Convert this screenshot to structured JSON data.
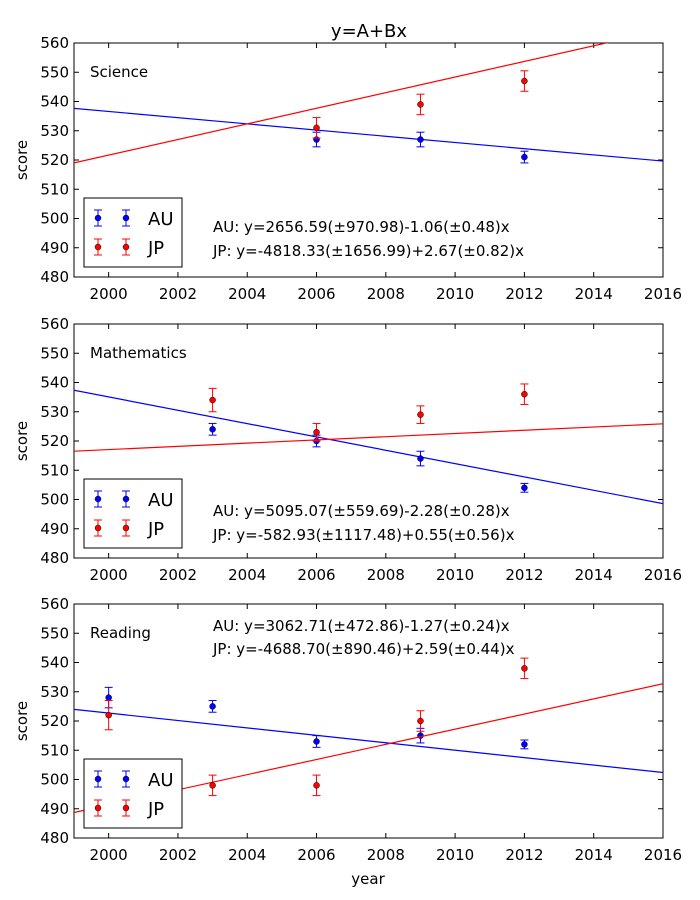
{
  "figure": {
    "title": "y=A+Bx",
    "xlabel": "year"
  },
  "legend_labels": {
    "au": "AU",
    "jp": "JP"
  },
  "colors": {
    "au": "#0000ff",
    "jp": "#ff0000",
    "axis": "#000000",
    "background": "#ffffff"
  },
  "chart_data": [
    {
      "type": "scatter",
      "title": "Science",
      "xlabel": "",
      "ylabel": "score",
      "xlim": [
        1999,
        2016
      ],
      "ylim": [
        480,
        560
      ],
      "xticks": [
        "2000",
        "2002",
        "2004",
        "2006",
        "2008",
        "2010",
        "2012",
        "2014",
        "2016"
      ],
      "yticks": [
        "480",
        "490",
        "500",
        "510",
        "520",
        "530",
        "540",
        "550",
        "560"
      ],
      "grid": false,
      "legend_position": "lower-left",
      "series": [
        {
          "name": "AU",
          "x": [
            2006,
            2009,
            2012
          ],
          "y": [
            527,
            527,
            521
          ],
          "err": [
            2.5,
            2.5,
            2
          ],
          "fit": {
            "a": 2656.59,
            "b": -1.06
          }
        },
        {
          "name": "JP",
          "x": [
            2006,
            2009,
            2012
          ],
          "y": [
            531,
            539,
            547
          ],
          "err": [
            3.5,
            3.5,
            3.5
          ],
          "fit": {
            "a": -4818.33,
            "b": 2.67
          }
        }
      ],
      "annotations": [
        "AU: y=2656.59(±970.98)-1.06(±0.48)x",
        "JP: y=-4818.33(±1656.99)+2.67(±0.82)x"
      ]
    },
    {
      "type": "scatter",
      "title": "Mathematics",
      "xlabel": "",
      "ylabel": "score",
      "xlim": [
        1999,
        2016
      ],
      "ylim": [
        480,
        560
      ],
      "xticks": [
        "2000",
        "2002",
        "2004",
        "2006",
        "2008",
        "2010",
        "2012",
        "2014",
        "2016"
      ],
      "yticks": [
        "480",
        "490",
        "500",
        "510",
        "520",
        "530",
        "540",
        "550",
        "560"
      ],
      "grid": false,
      "legend_position": "lower-left",
      "series": [
        {
          "name": "AU",
          "x": [
            2003,
            2006,
            2009,
            2012
          ],
          "y": [
            524,
            520,
            514,
            504
          ],
          "err": [
            2,
            2,
            2.5,
            1.5
          ],
          "fit": {
            "a": 5095.07,
            "b": -2.28
          }
        },
        {
          "name": "JP",
          "x": [
            2003,
            2006,
            2009,
            2012
          ],
          "y": [
            534,
            523,
            529,
            536
          ],
          "err": [
            4,
            3,
            3,
            3.5
          ],
          "fit": {
            "a": -582.93,
            "b": 0.55
          }
        }
      ],
      "annotations": [
        "AU: y=5095.07(±559.69)-2.28(±0.28)x",
        "JP: y=-582.93(±1117.48)+0.55(±0.56)x"
      ]
    },
    {
      "type": "scatter",
      "title": "Reading",
      "xlabel": "year",
      "ylabel": "score",
      "xlim": [
        1999,
        2016
      ],
      "ylim": [
        480,
        560
      ],
      "xticks": [
        "2000",
        "2002",
        "2004",
        "2006",
        "2008",
        "2010",
        "2012",
        "2014",
        "2016"
      ],
      "yticks": [
        "480",
        "490",
        "500",
        "510",
        "520",
        "530",
        "540",
        "550",
        "560"
      ],
      "grid": false,
      "legend_position": "lower-left",
      "series": [
        {
          "name": "AU",
          "x": [
            2000,
            2003,
            2006,
            2009,
            2012
          ],
          "y": [
            528,
            525,
            513,
            515,
            512
          ],
          "err": [
            3.5,
            2,
            2,
            2.5,
            1.5
          ],
          "fit": {
            "a": 3062.71,
            "b": -1.27
          }
        },
        {
          "name": "JP",
          "x": [
            2000,
            2003,
            2006,
            2009,
            2012
          ],
          "y": [
            522,
            498,
            498,
            520,
            538
          ],
          "err": [
            5,
            3.5,
            3.5,
            3.5,
            3.5
          ],
          "fit": {
            "a": -4688.7,
            "b": 2.59
          }
        }
      ],
      "annotations": [
        "AU: y=3062.71(±472.86)-1.27(±0.24)x",
        "JP: y=-4688.70(±890.46)+2.59(±0.44)x"
      ]
    }
  ]
}
